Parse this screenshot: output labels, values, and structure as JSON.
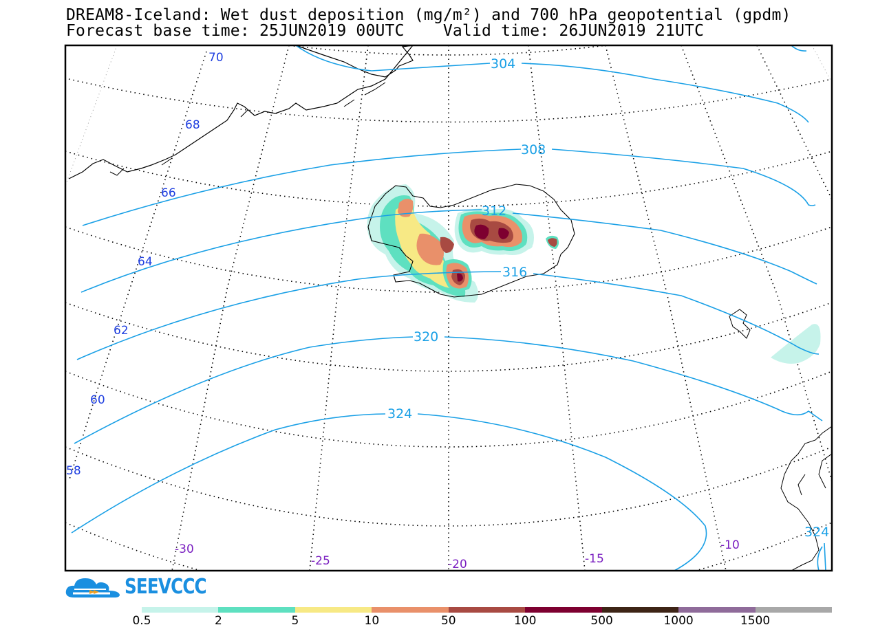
{
  "header": {
    "title_line1": "DREAM8-Iceland: Wet dust deposition (mg/m²) and 700 hPa geopotential (gpdm)",
    "title_line2": "Forecast base time: 25JUN2019 00UTC    Valid time: 26JUN2019 21UTC"
  },
  "map": {
    "latitude_labels": [
      "70",
      "68",
      "66",
      "64",
      "62",
      "60",
      "58"
    ],
    "longitude_labels": [
      "-30",
      "-25",
      "-20",
      "-15",
      "-10"
    ],
    "contour_labels": [
      "304",
      "308",
      "312",
      "316",
      "320",
      "324",
      "324"
    ],
    "contour_color": "#1aa0e6",
    "gridline_style": "dotted"
  },
  "logo": {
    "text": "SEEVCCC",
    "icon": "cloud-icon",
    "color": "#1a8fe0"
  },
  "legend": {
    "colors": [
      "#c6f3ea",
      "#5ee0c0",
      "#f7e985",
      "#e9906a",
      "#a84a42",
      "#7d0030",
      "#3d2416",
      "#8f6b9a",
      "#a8a8a8"
    ],
    "ticks": [
      "0.5",
      "2",
      "5",
      "10",
      "50",
      "100",
      "500",
      "1000",
      "1500"
    ]
  }
}
